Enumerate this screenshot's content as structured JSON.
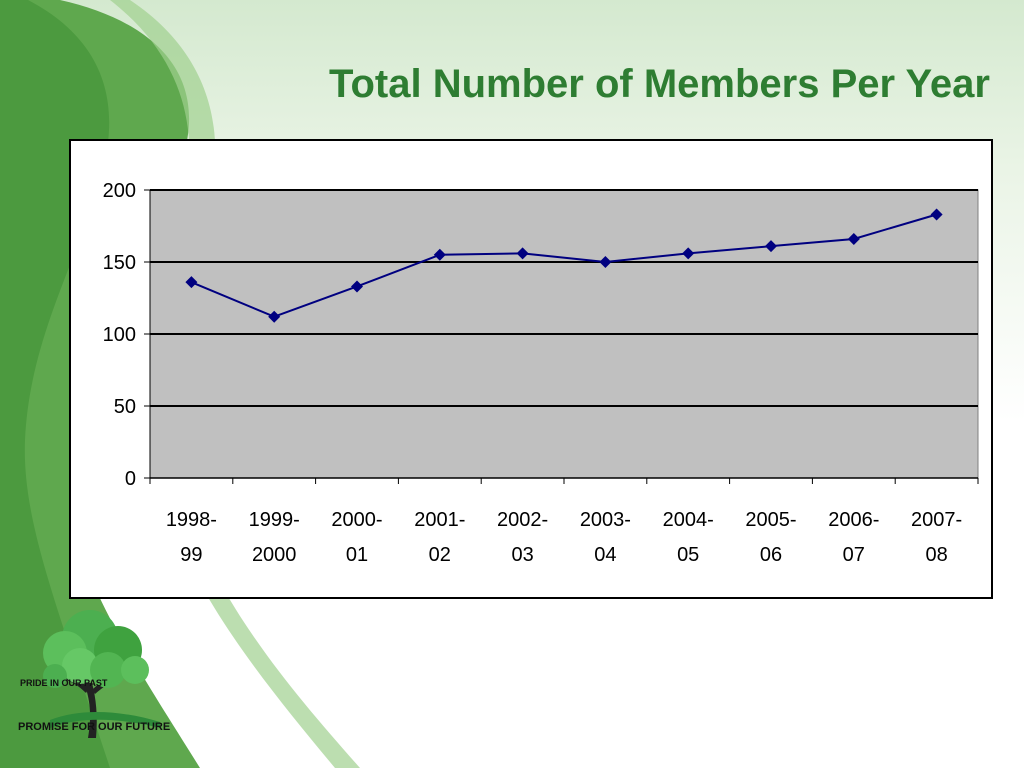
{
  "slide": {
    "title": "Total Number of Members Per Year"
  },
  "logo": {
    "line1": "PRIDE IN OUR PAST",
    "line2": "PROMISE FOR OUR FUTURE"
  },
  "colors": {
    "title": "#2e7d32",
    "plot_background": "#c0c0c0",
    "series_line": "#000080",
    "gridline": "#000000"
  },
  "chart_data": {
    "type": "line",
    "title": "",
    "xlabel": "",
    "ylabel": "",
    "ylim": [
      0,
      200
    ],
    "yticks": [
      0,
      50,
      100,
      150,
      200
    ],
    "grid": true,
    "legend": "none",
    "categories": [
      [
        "1998-",
        "99"
      ],
      [
        "1999-",
        "2000"
      ],
      [
        "2000-",
        "01"
      ],
      [
        "2001-",
        "02"
      ],
      [
        "2002-",
        "03"
      ],
      [
        "2003-",
        "04"
      ],
      [
        "2004-",
        "05"
      ],
      [
        "2005-",
        "06"
      ],
      [
        "2006-",
        "07"
      ],
      [
        "2007-",
        "08"
      ]
    ],
    "series": [
      {
        "values": [
          136,
          112,
          133,
          155,
          156,
          150,
          156,
          161,
          166,
          183
        ]
      }
    ]
  }
}
